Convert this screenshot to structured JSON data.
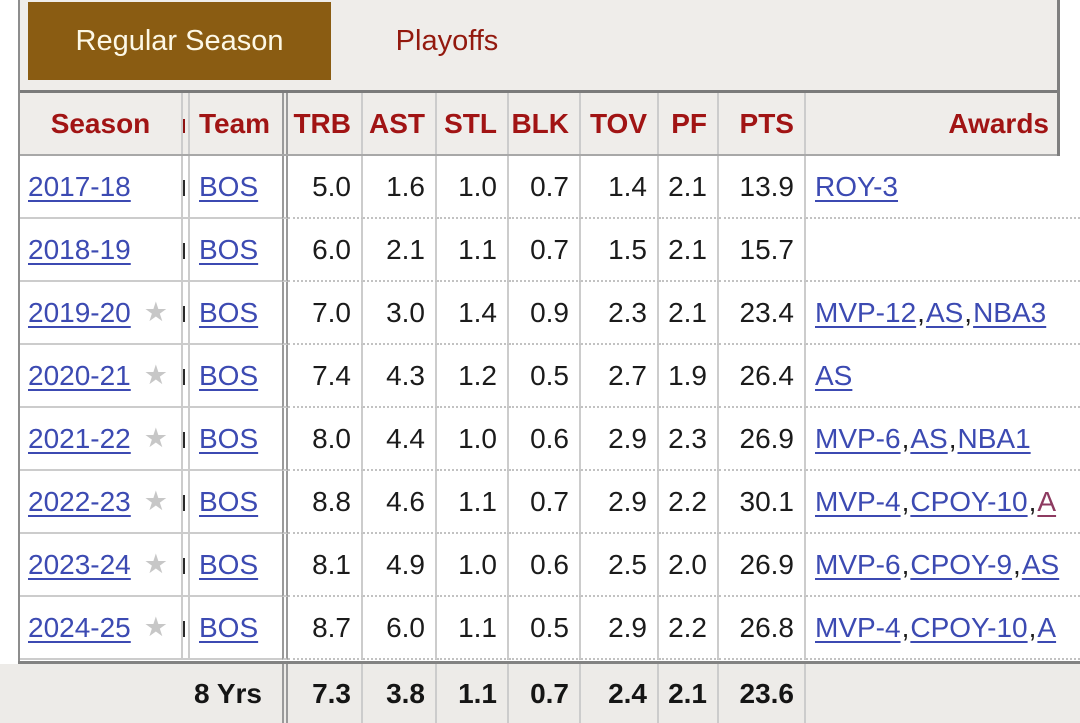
{
  "colors": {
    "active_tab_bg": "#8a5c12",
    "active_tab_text": "#fdf8e6",
    "inactive_tab_text": "#93190e",
    "header_text": "#a11414",
    "link_blue": "#3c4ab2",
    "visited_link_purple": "#8d3a60",
    "strip_bg": "#efedea",
    "footer_bg": "#edebe8",
    "star_gray": "#c7c7c7"
  },
  "tabs": {
    "regular_season": "Regular Season",
    "playoffs": "Playoffs"
  },
  "table": {
    "header_labels": {
      "season": "Season",
      "team": "Team",
      "trb": "TRB",
      "ast": "AST",
      "stl": "STL",
      "blk": "BLK",
      "tov": "TOV",
      "pf": "PF",
      "pts": "PTS",
      "awards": "Awards"
    },
    "rows": [
      {
        "season": "2017-18",
        "all_star": false,
        "team": "BOS",
        "trb": "5.0",
        "ast": "1.6",
        "stl": "1.0",
        "blk": "0.7",
        "tov": "1.4",
        "pf": "2.1",
        "pts": "13.9",
        "awards": [
          {
            "text": "ROY-3",
            "visited": false
          }
        ]
      },
      {
        "season": "2018-19",
        "all_star": false,
        "team": "BOS",
        "trb": "6.0",
        "ast": "2.1",
        "stl": "1.1",
        "blk": "0.7",
        "tov": "1.5",
        "pf": "2.1",
        "pts": "15.7",
        "awards": []
      },
      {
        "season": "2019-20",
        "all_star": true,
        "team": "BOS",
        "trb": "7.0",
        "ast": "3.0",
        "stl": "1.4",
        "blk": "0.9",
        "tov": "2.3",
        "pf": "2.1",
        "pts": "23.4",
        "awards": [
          {
            "text": "MVP-12",
            "visited": false
          },
          {
            "text": "AS",
            "visited": false
          },
          {
            "text": "NBA3",
            "visited": false
          }
        ]
      },
      {
        "season": "2020-21",
        "all_star": true,
        "team": "BOS",
        "trb": "7.4",
        "ast": "4.3",
        "stl": "1.2",
        "blk": "0.5",
        "tov": "2.7",
        "pf": "1.9",
        "pts": "26.4",
        "awards": [
          {
            "text": "AS",
            "visited": false
          }
        ]
      },
      {
        "season": "2021-22",
        "all_star": true,
        "team": "BOS",
        "trb": "8.0",
        "ast": "4.4",
        "stl": "1.0",
        "blk": "0.6",
        "tov": "2.9",
        "pf": "2.3",
        "pts": "26.9",
        "awards": [
          {
            "text": "MVP-6",
            "visited": false
          },
          {
            "text": "AS",
            "visited": false
          },
          {
            "text": "NBA1",
            "visited": false
          }
        ]
      },
      {
        "season": "2022-23",
        "all_star": true,
        "team": "BOS",
        "trb": "8.8",
        "ast": "4.6",
        "stl": "1.1",
        "blk": "0.7",
        "tov": "2.9",
        "pf": "2.2",
        "pts": "30.1",
        "awards": [
          {
            "text": "MVP-4",
            "visited": false
          },
          {
            "text": "CPOY-10",
            "visited": false
          },
          {
            "text": "A",
            "visited": true
          }
        ]
      },
      {
        "season": "2023-24",
        "all_star": true,
        "team": "BOS",
        "trb": "8.1",
        "ast": "4.9",
        "stl": "1.0",
        "blk": "0.6",
        "tov": "2.5",
        "pf": "2.0",
        "pts": "26.9",
        "awards": [
          {
            "text": "MVP-6",
            "visited": false
          },
          {
            "text": "CPOY-9",
            "visited": false
          },
          {
            "text": "AS",
            "visited": false
          }
        ]
      },
      {
        "season": "2024-25",
        "all_star": true,
        "team": "BOS",
        "trb": "8.7",
        "ast": "6.0",
        "stl": "1.1",
        "blk": "0.5",
        "tov": "2.9",
        "pf": "2.2",
        "pts": "26.8",
        "awards": [
          {
            "text": "MVP-4",
            "visited": false
          },
          {
            "text": "CPOY-10",
            "visited": false
          },
          {
            "text": "A",
            "visited": false
          }
        ]
      }
    ],
    "footer": {
      "label": "8 Yrs",
      "trb": "7.3",
      "ast": "3.8",
      "stl": "1.1",
      "blk": "0.7",
      "tov": "2.4",
      "pf": "2.1",
      "pts": "23.6",
      "awards": ""
    }
  }
}
